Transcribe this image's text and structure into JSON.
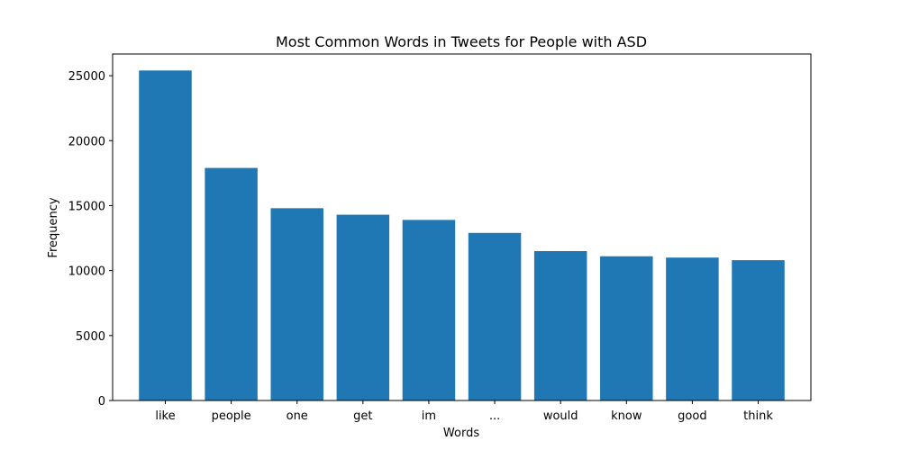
{
  "chart_data": {
    "type": "bar",
    "title": "Most Common Words in Tweets for People with ASD",
    "xlabel": "Words",
    "ylabel": "Frequency",
    "categories": [
      "like",
      "people",
      "one",
      "get",
      "im",
      "...",
      "would",
      "know",
      "good",
      "think"
    ],
    "values": [
      25400,
      17900,
      14800,
      14300,
      13900,
      12900,
      11500,
      11100,
      11000,
      10800
    ],
    "ylim": [
      0,
      26670
    ],
    "yticks": [
      0,
      5000,
      10000,
      15000,
      20000,
      25000
    ],
    "bar_color": "#1f77b4",
    "grid": false
  }
}
